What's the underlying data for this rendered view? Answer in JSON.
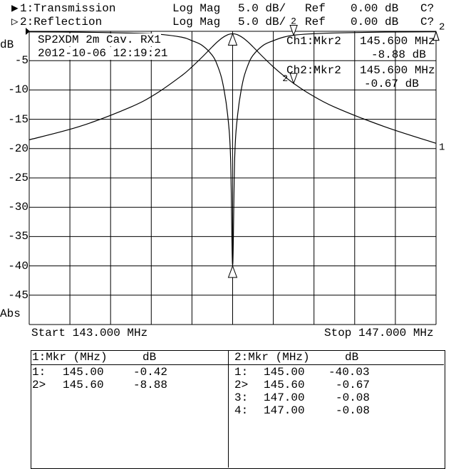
{
  "header": {
    "channels": [
      {
        "indicator": "▶",
        "label": "1:Transmission",
        "format": "Log Mag",
        "scale": "5.0 dB/",
        "ref_label": "Ref",
        "ref_value": "0.00 dB",
        "cal": "C?"
      },
      {
        "indicator": "▷",
        "label": "2:Reflection",
        "format": "Log Mag",
        "scale": "5.0 dB/",
        "ref_label": "Ref",
        "ref_value": "0.00 dB",
        "cal": "C?"
      }
    ]
  },
  "annotation": {
    "title": "SP2XDM 2m Cav. RX1",
    "timestamp": "2012-10-06 12:19:21"
  },
  "marker_readout": [
    {
      "label": "Ch1:Mkr2",
      "freq": "145.600 MHz",
      "value": "-8.88 dB"
    },
    {
      "label": "Ch2:Mkr2",
      "freq": "145.600 MHz",
      "value": "-0.67 dB"
    }
  ],
  "axis": {
    "unit": "dB",
    "mode": "Abs",
    "start": "Start 143.000 MHz",
    "stop": "Stop 147.000 MHz"
  },
  "marker_tables": [
    {
      "header_mkr": "1:Mkr (MHz)",
      "header_db": "dB",
      "rows": [
        {
          "id": "1:",
          "freq": "145.00",
          "db": "-0.42"
        },
        {
          "id": "2>",
          "freq": "145.60",
          "db": "-8.88"
        }
      ]
    },
    {
      "header_mkr": "2:Mkr (MHz)",
      "header_db": "dB",
      "rows": [
        {
          "id": "1:",
          "freq": "145.00",
          "db": "-40.03"
        },
        {
          "id": "2>",
          "freq": "145.60",
          "db": "-0.67"
        },
        {
          "id": "3:",
          "freq": "147.00",
          "db": "-0.08"
        },
        {
          "id": "4:",
          "freq": "147.00",
          "db": "-0.08"
        }
      ]
    }
  ],
  "chart_data": {
    "type": "line",
    "xlim": [
      143.0,
      147.0
    ],
    "ylim": [
      -50,
      0
    ],
    "ylabel": "dB",
    "yticks": [
      "-5",
      "-10",
      "-15",
      "-20",
      "-25",
      "-30",
      "-35",
      "-40",
      "-45"
    ],
    "grid": true,
    "x_divisions": 10,
    "y_divisions": 10,
    "series": [
      {
        "name": "1:Transmission",
        "trace_label": "1",
        "x": [
          143.0,
          143.5,
          144.0,
          144.25,
          144.5,
          144.6,
          144.7,
          144.8,
          144.85,
          144.9,
          144.95,
          144.98,
          145.0,
          145.02,
          145.05,
          145.1,
          145.15,
          145.2,
          145.3,
          145.4,
          145.5,
          145.6,
          145.75,
          146.0,
          146.5,
          147.0
        ],
        "y": [
          -18.5,
          -16.2,
          -12.9,
          -10.6,
          -7.55,
          -6.06,
          -4.4,
          -2.64,
          -1.8,
          -1.09,
          -0.6,
          -0.45,
          -0.42,
          -0.45,
          -0.6,
          -1.09,
          -1.8,
          -2.64,
          -4.4,
          -6.06,
          -7.55,
          -8.88,
          -10.6,
          -12.9,
          -16.3,
          -19.1
        ]
      },
      {
        "name": "2:Reflection",
        "trace_label": "2",
        "x": [
          143.0,
          143.5,
          144.0,
          144.25,
          144.5,
          144.6,
          144.7,
          144.8,
          144.85,
          144.9,
          144.95,
          144.98,
          145.0,
          145.02,
          145.05,
          145.1,
          145.15,
          145.2,
          145.3,
          145.4,
          145.5,
          145.6,
          145.75,
          146.0,
          146.5,
          147.0
        ],
        "y": [
          -0.1,
          -0.15,
          -0.3,
          -0.46,
          -1.0,
          -1.6,
          -2.4,
          -4.1,
          -5.8,
          -8.6,
          -14.1,
          -21.7,
          -40.03,
          -21.7,
          -14.1,
          -8.6,
          -5.8,
          -4.1,
          -2.4,
          -1.6,
          -1.0,
          -0.67,
          -0.45,
          -0.28,
          -0.13,
          -0.08
        ]
      }
    ],
    "markers": [
      {
        "series": 0,
        "id": "1",
        "x": 145.0,
        "y": -0.42,
        "active": false
      },
      {
        "series": 0,
        "id": "2",
        "x": 145.6,
        "y": -8.88,
        "active": true
      },
      {
        "series": 1,
        "id": "1",
        "x": 145.0,
        "y": -40.03,
        "active": false
      },
      {
        "series": 1,
        "id": "2",
        "x": 145.6,
        "y": -0.67,
        "active": true
      },
      {
        "series": 1,
        "id": "3",
        "x": 147.0,
        "y": -0.08,
        "active": false
      },
      {
        "series": 1,
        "id": "4",
        "x": 147.0,
        "y": -0.08,
        "active": false
      }
    ]
  }
}
